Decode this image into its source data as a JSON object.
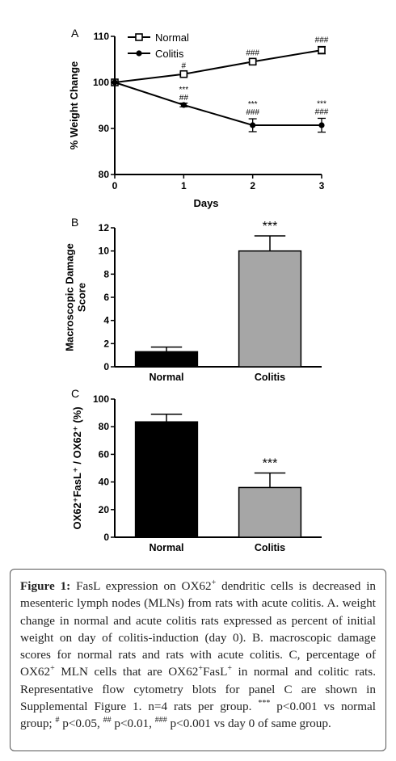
{
  "chart_data": [
    {
      "panel_label": "A",
      "type": "line",
      "xlabel": "Days",
      "ylabel": "% Weight Change",
      "x": [
        0,
        1,
        2,
        3
      ],
      "xlim": [
        0,
        3
      ],
      "ylim": [
        80,
        110
      ],
      "xticks": [
        0,
        1,
        2,
        3
      ],
      "yticks": [
        80,
        90,
        100,
        110
      ],
      "legend_position": "top-left",
      "series": [
        {
          "name": "Normal",
          "marker": "open-square",
          "values": [
            100,
            101.8,
            104.5,
            107.0
          ],
          "error": [
            0,
            0.4,
            0.5,
            0.8
          ],
          "annotations": [
            "",
            "#",
            "###",
            "###"
          ]
        },
        {
          "name": "Colitis",
          "marker": "filled-circle",
          "values": [
            100,
            95.1,
            90.7,
            90.7
          ],
          "error": [
            0,
            0.4,
            1.4,
            1.5
          ],
          "annotations": [
            "",
            "***\n##",
            "***\n###",
            "***\n###"
          ]
        }
      ]
    },
    {
      "panel_label": "B",
      "type": "bar",
      "ylabel": "Macroscopic Damage Score",
      "categories": [
        "Normal",
        "Colitis"
      ],
      "values": [
        1.3,
        10.0
      ],
      "error": [
        0.4,
        1.3
      ],
      "colors": [
        "#000000",
        "#a6a6a6"
      ],
      "annotations": [
        "",
        "***"
      ],
      "ylim": [
        0,
        12
      ],
      "yticks": [
        0,
        2,
        4,
        6,
        8,
        10,
        12
      ]
    },
    {
      "panel_label": "C",
      "type": "bar",
      "ylabel": "OX62⁺FasL⁺ / OX62⁺ (%)",
      "categories": [
        "Normal",
        "Colitis"
      ],
      "values": [
        83.5,
        36.0
      ],
      "error": [
        5.5,
        10.5
      ],
      "colors": [
        "#000000",
        "#a6a6a6"
      ],
      "annotations": [
        "",
        "***"
      ],
      "ylim": [
        0,
        100
      ],
      "yticks": [
        0,
        20,
        40,
        60,
        80,
        100
      ]
    }
  ],
  "caption": {
    "label": "Figure 1:",
    "text_html": "FasL expression on OX62<sup>+</sup> dendritic cells is decreased in mesenteric lymph nodes (MLNs) from rats with acute colitis. A. weight change in normal and acute colitis rats expressed as percent of initial weight on day of colitis-induction (day 0). B. macroscopic damage scores for normal rats and rats with acute colitis. C, percentage of OX62<sup>+</sup> MLN cells that are OX62<sup>+</sup>FasL<sup>+</sup> in normal and colitic rats. Representative flow cytometry blots for panel C are shown in Supplemental Figure 1. n=4 rats per group. <sup>***</sup> p&lt;0.001 vs normal group; <sup>#</sup> p&lt;0.05, <sup>##</sup> p&lt;0.01, <sup>###</sup> p&lt;0.001 vs day 0 of same group."
  }
}
